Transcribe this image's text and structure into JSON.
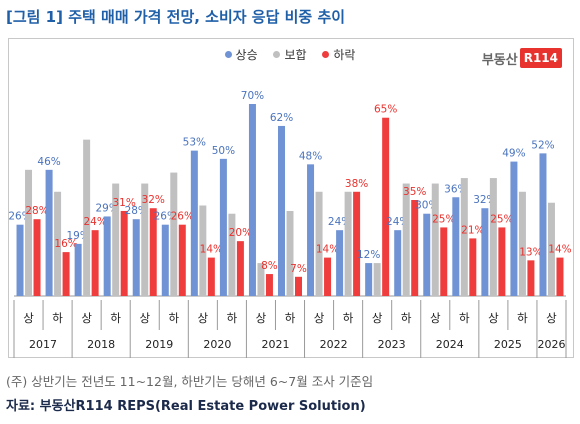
{
  "title": "[그림 1] 주택 매매 가격 전망, 소비자 응답 비중 추이",
  "logo": {
    "text": "부동산",
    "badge": "R114"
  },
  "note": "(주) 상반기는 전년도 11~12월, 하반기는 당해년 6~7월 조사 기준임",
  "source": "자료: 부동산R114 REPS(Real Estate Power Solution)",
  "colors": {
    "rise": "#6f93d4",
    "flat": "#c0c0c0",
    "fall": "#ef3d3d"
  },
  "chart_data": {
    "type": "bar",
    "ylim": [
      0,
      75
    ],
    "legend_position": "top-center",
    "categories": [
      "상",
      "하",
      "상",
      "하",
      "상",
      "하",
      "상",
      "하",
      "상",
      "하",
      "상",
      "하",
      "상",
      "하",
      "상",
      "하",
      "상",
      "하",
      "상"
    ],
    "years": [
      {
        "label": "2017",
        "span": 2
      },
      {
        "label": "2018",
        "span": 2
      },
      {
        "label": "2019",
        "span": 2
      },
      {
        "label": "2020",
        "span": 2
      },
      {
        "label": "2021",
        "span": 2
      },
      {
        "label": "2022",
        "span": 2
      },
      {
        "label": "2023",
        "span": 2
      },
      {
        "label": "2024",
        "span": 2
      },
      {
        "label": "2025",
        "span": 2
      },
      {
        "label": "2026",
        "span": 1
      }
    ],
    "series": [
      {
        "name": "상승",
        "color": "#6f93d4",
        "labelColor": "#4a73bd",
        "values": [
          26,
          46,
          19,
          29,
          28,
          26,
          53,
          50,
          70,
          62,
          48,
          24,
          12,
          24,
          30,
          36,
          32,
          49,
          52
        ]
      },
      {
        "name": "보합",
        "color": "#c0c0c0",
        "labelColor": "#888888",
        "values": [
          46,
          38,
          57,
          41,
          41,
          45,
          33,
          30,
          12,
          31,
          38,
          38,
          12,
          41,
          41,
          43,
          43,
          38,
          34
        ]
      },
      {
        "name": "하락",
        "color": "#ef3d3d",
        "labelColor": "#e8322e",
        "values": [
          28,
          16,
          24,
          31,
          32,
          26,
          14,
          20,
          8,
          7,
          14,
          38,
          65,
          35,
          25,
          21,
          25,
          13,
          14
        ]
      }
    ]
  }
}
